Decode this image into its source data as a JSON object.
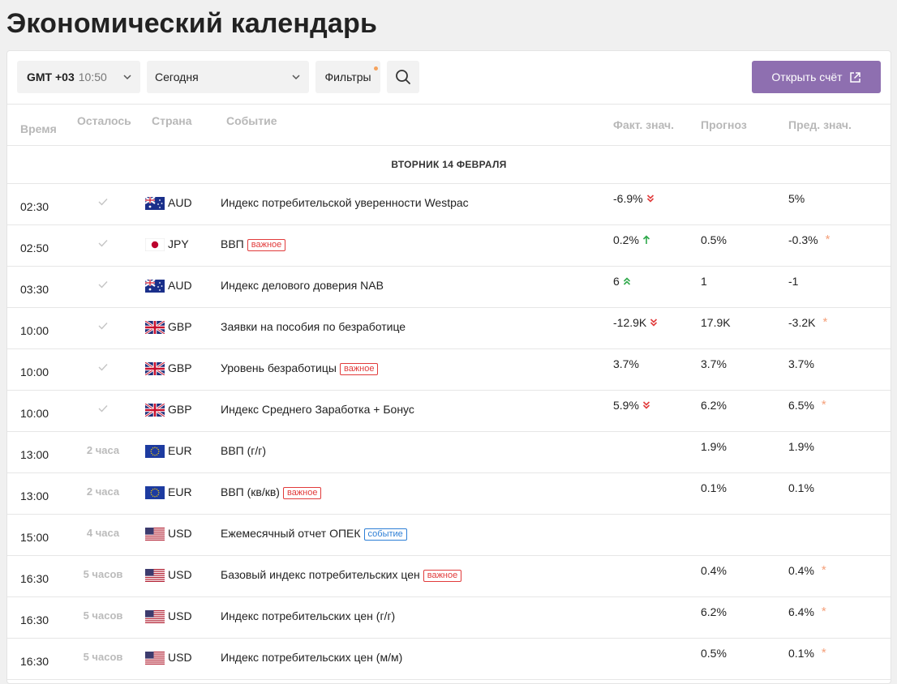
{
  "page": {
    "title": "Экономический календарь"
  },
  "toolbar": {
    "timezone_label": "GMT +03",
    "timezone_time": "10:50",
    "day_select": "Сегодня",
    "filters_label": "Фильтры",
    "open_account_label": "Открыть счёт"
  },
  "columns": {
    "time": "Время",
    "remaining": "Осталось",
    "country": "Страна",
    "event": "Событие",
    "actual": "Факт. знач.",
    "forecast": "Прогноз",
    "previous": "Пред. знач."
  },
  "day_header": "ВТОРНИК 14 ФЕВРАЛЯ",
  "rows": [
    {
      "time": "02:30",
      "remaining": "",
      "done": true,
      "flag": "au",
      "currency": "AUD",
      "event": "Индекс потребительской уверенности Westpac",
      "badge": "",
      "badge_type": "",
      "actual": "-6.9%",
      "trend": "down-double",
      "forecast": "",
      "previous": "5%",
      "revised": false
    },
    {
      "time": "02:50",
      "remaining": "",
      "done": true,
      "flag": "jp",
      "currency": "JPY",
      "event": "ВВП",
      "badge": "важное",
      "badge_type": "imp",
      "actual": "0.2%",
      "trend": "up",
      "forecast": "0.5%",
      "previous": "-0.3%",
      "revised": true
    },
    {
      "time": "03:30",
      "remaining": "",
      "done": true,
      "flag": "au",
      "currency": "AUD",
      "event": "Индекс делового доверия NAB",
      "badge": "",
      "badge_type": "",
      "actual": "6",
      "trend": "up-double",
      "forecast": "1",
      "previous": "-1",
      "revised": false
    },
    {
      "time": "10:00",
      "remaining": "",
      "done": true,
      "flag": "gb",
      "currency": "GBP",
      "event": "Заявки на пособия по безработице",
      "badge": "",
      "badge_type": "",
      "actual": "-12.9K",
      "trend": "down-double",
      "forecast": "17.9K",
      "previous": "-3.2K",
      "revised": true
    },
    {
      "time": "10:00",
      "remaining": "",
      "done": true,
      "flag": "gb",
      "currency": "GBP",
      "event": "Уровень безработицы",
      "badge": "важное",
      "badge_type": "imp",
      "actual": "3.7%",
      "trend": "",
      "forecast": "3.7%",
      "previous": "3.7%",
      "revised": false
    },
    {
      "time": "10:00",
      "remaining": "",
      "done": true,
      "flag": "gb",
      "currency": "GBP",
      "event": "Индекс Среднего Заработка + Бонус",
      "badge": "",
      "badge_type": "",
      "actual": "5.9%",
      "trend": "down-double",
      "forecast": "6.2%",
      "previous": "6.5%",
      "revised": true
    },
    {
      "time": "13:00",
      "remaining": "2 часа",
      "done": false,
      "flag": "eu",
      "currency": "EUR",
      "event": "ВВП (г/г)",
      "badge": "",
      "badge_type": "",
      "actual": "",
      "trend": "",
      "forecast": "1.9%",
      "previous": "1.9%",
      "revised": false
    },
    {
      "time": "13:00",
      "remaining": "2 часа",
      "done": false,
      "flag": "eu",
      "currency": "EUR",
      "event": "ВВП (кв/кв)",
      "badge": "важное",
      "badge_type": "imp",
      "actual": "",
      "trend": "",
      "forecast": "0.1%",
      "previous": "0.1%",
      "revised": false
    },
    {
      "time": "15:00",
      "remaining": "4 часа",
      "done": false,
      "flag": "us",
      "currency": "USD",
      "event": "Ежемесячный отчет ОПЕК",
      "badge": "событие",
      "badge_type": "evt",
      "actual": "",
      "trend": "",
      "forecast": "",
      "previous": "",
      "revised": false
    },
    {
      "time": "16:30",
      "remaining": "5 часов",
      "done": false,
      "flag": "us",
      "currency": "USD",
      "event": "Базовый индекс потребительских цен",
      "badge": "важное",
      "badge_type": "imp",
      "actual": "",
      "trend": "",
      "forecast": "0.4%",
      "previous": "0.4%",
      "revised": true
    },
    {
      "time": "16:30",
      "remaining": "5 часов",
      "done": false,
      "flag": "us",
      "currency": "USD",
      "event": "Индекс потребительских цен (г/г)",
      "badge": "",
      "badge_type": "",
      "actual": "",
      "trend": "",
      "forecast": "6.2%",
      "previous": "6.4%",
      "revised": true
    },
    {
      "time": "16:30",
      "remaining": "5 часов",
      "done": false,
      "flag": "us",
      "currency": "USD",
      "event": "Индекс потребительских цен (м/м)",
      "badge": "",
      "badge_type": "",
      "actual": "",
      "trend": "",
      "forecast": "0.5%",
      "previous": "0.1%",
      "revised": true
    }
  ],
  "revised_marker": "*",
  "colors": {
    "accent_button": "#8e6fb0",
    "important": "#e13b3b",
    "event": "#2d7fd6",
    "trend_up": "#2ea84a",
    "trend_down": "#e13b3b",
    "revised": "#f5a07a"
  }
}
